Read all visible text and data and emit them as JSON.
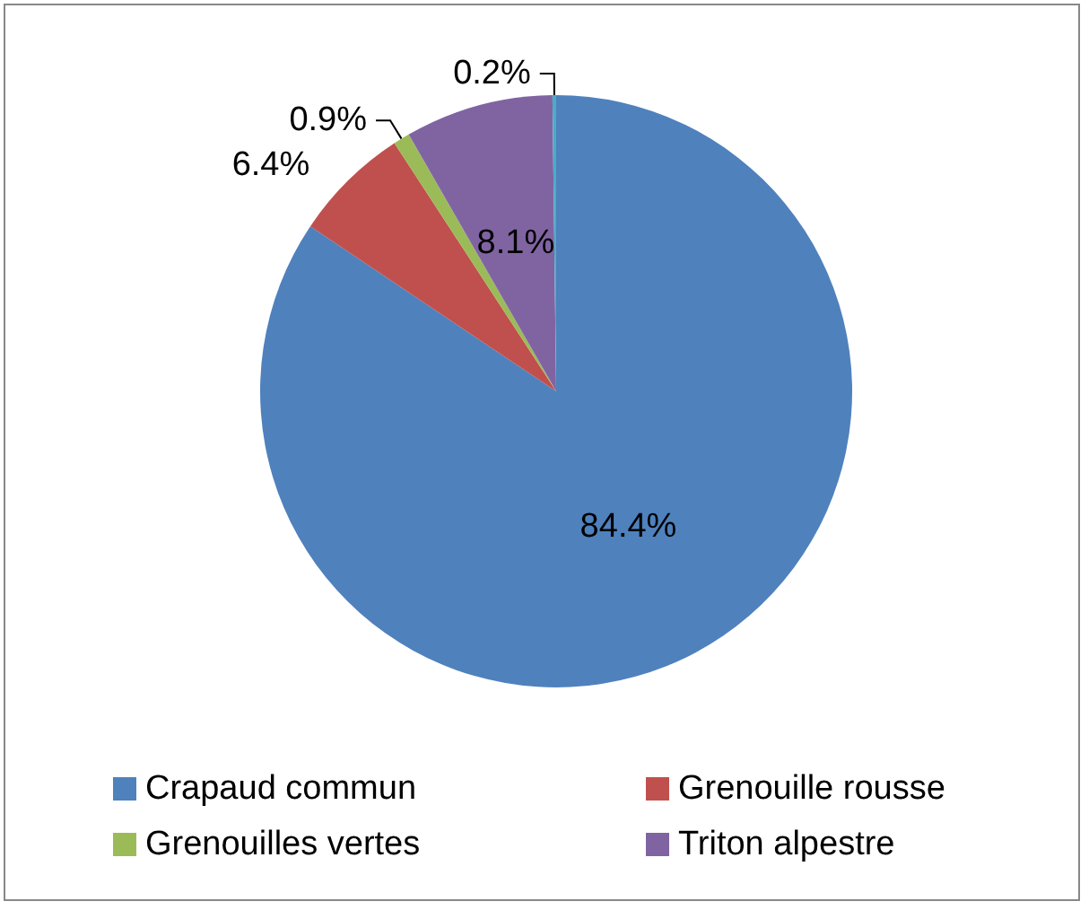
{
  "chart_data": {
    "type": "pie",
    "categories": [
      "Crapaud commun",
      "Grenouille rousse",
      "Grenouilles vertes",
      "Triton alpestre",
      null
    ],
    "values": [
      84.4,
      6.4,
      0.9,
      8.1,
      0.2
    ],
    "colors": [
      "#4f81bd",
      "#c0504d",
      "#9bbb59",
      "#8064a2",
      "#4bacc6"
    ],
    "value_labels": [
      "84.4%",
      "6.4%",
      "0.9%",
      "8.1%",
      "0.2%"
    ],
    "legend": "bottom"
  }
}
